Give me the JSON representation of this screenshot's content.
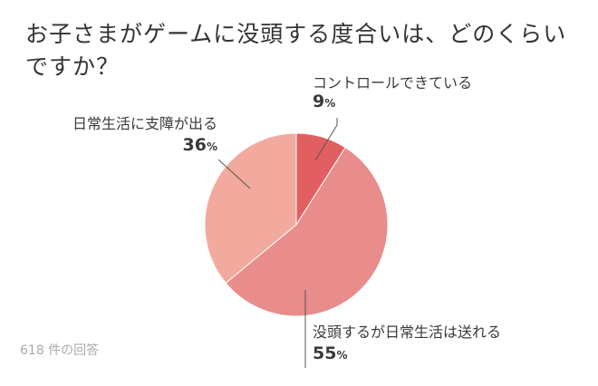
{
  "title": "お子さまがゲームに没頭する度合いは、どのくらいですか？",
  "footnote": "618 件の回答",
  "chart_data": {
    "type": "pie",
    "title": "お子さまがゲームに没頭する度合いは、どのくらいですか？",
    "unit": "%",
    "slices": [
      {
        "label": "コントロールできている",
        "value": 9,
        "color": "#e15f60"
      },
      {
        "label": "没頭するが日常生活は送れる",
        "value": 55,
        "color": "#e88c8c"
      },
      {
        "label": "日常生活に支障が出る",
        "value": 36,
        "color": "#f2aa9e"
      }
    ],
    "start_angle_deg": 0,
    "direction": "clockwise",
    "label_placement": "outside with leader lines"
  }
}
